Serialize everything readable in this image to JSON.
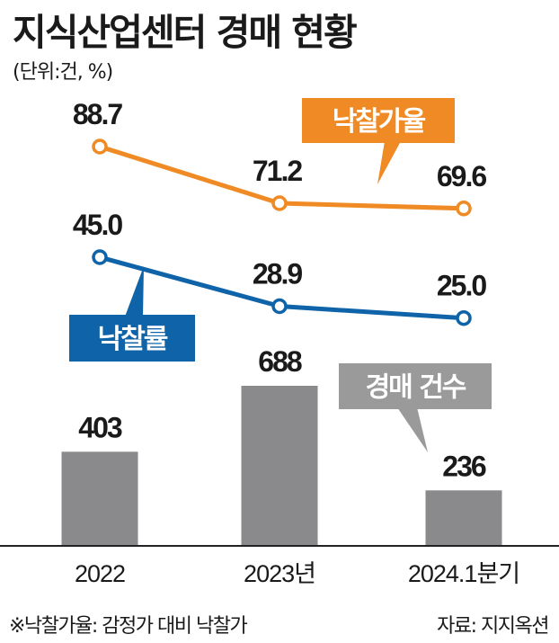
{
  "header": {
    "title": "지식산업센터 경매 현황",
    "unit": "(단위:건, %)"
  },
  "footer": {
    "note": "※낙찰가율: 감정가 대비 낙찰가",
    "source": "자료: 지지옥션"
  },
  "colors": {
    "orange": "#f08a24",
    "blue": "#0f63a8",
    "bar": "#8a8a8d",
    "label_gray": "#9a9a9a"
  },
  "chart_data": {
    "type": "bar+line",
    "categories": [
      "2022",
      "2023년",
      "2024.1분기"
    ],
    "series": [
      {
        "name": "낙찰가율",
        "type": "line",
        "color": "#f08a24",
        "values": [
          88.7,
          71.2,
          69.6
        ],
        "labels": [
          "88.7",
          "71.2",
          "69.6"
        ]
      },
      {
        "name": "낙찰률",
        "type": "line",
        "color": "#0f63a8",
        "values": [
          45.0,
          28.9,
          25.0
        ],
        "labels": [
          "45.0",
          "28.9",
          "25.0"
        ]
      },
      {
        "name": "경매 건수",
        "type": "bar",
        "color": "#8a8a8d",
        "values": [
          403,
          688,
          236
        ],
        "labels": [
          "403",
          "688",
          "236"
        ]
      }
    ]
  }
}
